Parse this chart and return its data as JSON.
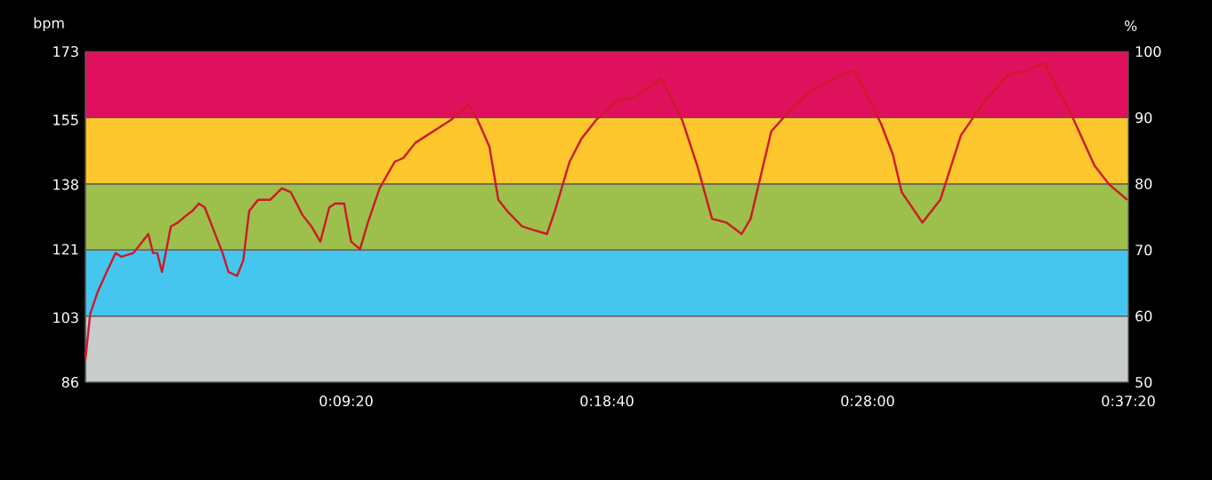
{
  "chart_data": {
    "type": "line",
    "ylabel": "bpm",
    "y2label": "%",
    "xlim": [
      0,
      37.333
    ],
    "ylim": [
      86,
      173
    ],
    "y2lim": [
      50,
      100
    ],
    "xticks": [
      {
        "value": 0,
        "label": null
      },
      {
        "value": 9.333,
        "label": "0:09:20"
      },
      {
        "value": 18.667,
        "label": "0:18:40"
      },
      {
        "value": 28.0,
        "label": "0:28:00"
      },
      {
        "value": 37.333,
        "label": "0:37:20"
      }
    ],
    "yticks": [
      86,
      103,
      121,
      138,
      155,
      173
    ],
    "y2ticks": [
      50,
      60,
      70,
      80,
      90,
      100
    ],
    "bands": [
      {
        "axis": "y2",
        "from": 50,
        "to": 60,
        "color": "#c8cccb"
      },
      {
        "axis": "y2",
        "from": 60,
        "to": 70,
        "color": "#45c6ee"
      },
      {
        "axis": "y2",
        "from": 70,
        "to": 80,
        "color": "#9dbf4b"
      },
      {
        "axis": "y2",
        "from": 80,
        "to": 90,
        "color": "#ffc72e"
      },
      {
        "axis": "y2",
        "from": 90,
        "to": 100,
        "color": "#e0115c"
      }
    ],
    "series": [
      {
        "color": "#cc1a2a",
        "line_style": "solid",
        "x": [
          0.0,
          0.17,
          0.45,
          0.76,
          1.08,
          1.29,
          1.72,
          2.04,
          2.25,
          2.42,
          2.57,
          2.74,
          3.06,
          3.31,
          3.63,
          3.82,
          4.06,
          4.27,
          4.59,
          4.91,
          5.12,
          5.43,
          5.65,
          5.86,
          6.18,
          6.61,
          7.03,
          7.35,
          7.77,
          8.09,
          8.41,
          8.73,
          8.94,
          9.26,
          9.51,
          9.83,
          10.11,
          10.53,
          11.07,
          11.38,
          11.81,
          12.66,
          13.08,
          13.72,
          14.04,
          14.46,
          14.78,
          15.1,
          15.63,
          16.05,
          16.52,
          16.8,
          17.33,
          17.75,
          18.28,
          19.03,
          19.67,
          20.62,
          21.36,
          21.9,
          22.43,
          22.95,
          23.49,
          23.81,
          24.55,
          25.4,
          26.04,
          27.1,
          27.52,
          28.48,
          28.9,
          29.22,
          29.96,
          30.6,
          31.34,
          32.19,
          33.05,
          33.68,
          34.32,
          35.38,
          36.12,
          36.65,
          37.29
        ],
        "values": [
          92,
          104,
          110,
          115,
          120,
          119,
          120,
          123,
          125,
          120,
          120,
          115,
          127,
          128,
          130,
          131,
          133,
          132,
          126,
          120,
          115,
          114,
          118,
          131,
          134,
          134,
          137,
          136,
          130,
          127,
          123,
          132,
          133,
          133,
          123,
          121,
          128,
          137,
          144,
          145,
          149,
          153,
          155,
          159,
          155,
          148,
          134,
          131,
          127,
          126,
          125,
          131,
          144,
          150,
          155,
          160,
          161,
          166,
          155,
          143,
          129,
          128,
          125,
          129,
          152,
          159,
          163,
          167,
          168,
          154,
          146,
          136,
          128,
          134,
          151,
          160,
          167,
          168,
          170,
          155,
          143,
          138,
          134
        ]
      }
    ]
  }
}
